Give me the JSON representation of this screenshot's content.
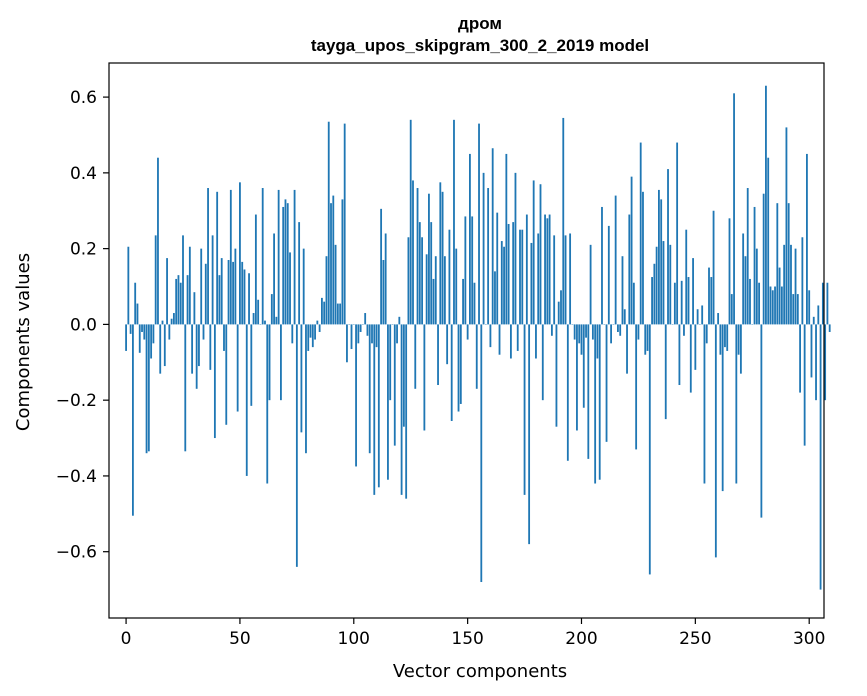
{
  "chart_data": {
    "type": "bar",
    "title": "дром",
    "subtitle": "tayga_upos_skipgram_300_2_2019 model",
    "xlabel": "Vector components",
    "ylabel": "Components values",
    "xlim": [
      -7.5,
      306.5
    ],
    "ylim": [
      -0.775,
      0.69
    ],
    "xticks": [
      0,
      50,
      100,
      150,
      200,
      250,
      300
    ],
    "xtick_labels": [
      "0",
      "50",
      "100",
      "150",
      "200",
      "250",
      "300"
    ],
    "yticks": [
      -0.6,
      -0.4,
      -0.2,
      0.0,
      0.2,
      0.4,
      0.6
    ],
    "ytick_labels": [
      "−0.6",
      "−0.4",
      "−0.2",
      "0.0",
      "0.2",
      "0.4",
      "0.6"
    ],
    "grid": false,
    "legend": "none",
    "bar_color": "#1f77b4",
    "values": [
      -0.07,
      0.205,
      -0.025,
      -0.505,
      0.11,
      0.055,
      -0.075,
      -0.02,
      -0.04,
      -0.34,
      -0.335,
      -0.09,
      -0.05,
      0.235,
      0.44,
      -0.13,
      0.01,
      -0.11,
      0.175,
      -0.04,
      0.015,
      0.03,
      0.12,
      0.13,
      0.11,
      0.235,
      -0.335,
      0.13,
      0.205,
      -0.13,
      0.085,
      -0.17,
      -0.11,
      0.2,
      -0.04,
      0.16,
      0.36,
      -0.12,
      0.235,
      -0.3,
      0.35,
      0.13,
      0.175,
      -0.07,
      -0.265,
      0.17,
      0.355,
      0.165,
      0.2,
      -0.23,
      0.375,
      0.165,
      0.145,
      -0.4,
      0.135,
      -0.215,
      0.03,
      0.29,
      0.065,
      0.0,
      0.36,
      0.01,
      -0.42,
      -0.2,
      0.08,
      0.24,
      0.02,
      0.355,
      -0.2,
      0.31,
      0.33,
      0.32,
      0.19,
      -0.05,
      0.355,
      -0.64,
      0.27,
      -0.285,
      0.2,
      -0.34,
      -0.07,
      -0.035,
      -0.06,
      -0.04,
      0.01,
      -0.02,
      0.07,
      0.06,
      0.18,
      0.535,
      0.32,
      0.34,
      0.21,
      0.055,
      0.055,
      0.33,
      0.53,
      -0.1,
      0.0,
      -0.065,
      0.0,
      -0.375,
      -0.05,
      -0.02,
      0.0,
      0.03,
      -0.03,
      -0.34,
      -0.05,
      -0.45,
      -0.06,
      -0.43,
      0.305,
      0.17,
      0.24,
      -0.41,
      -0.2,
      0.0,
      -0.32,
      -0.05,
      0.02,
      -0.45,
      -0.27,
      -0.46,
      0.23,
      0.54,
      0.38,
      -0.17,
      0.36,
      0.27,
      0.23,
      -0.28,
      0.185,
      0.345,
      0.27,
      0.12,
      0.18,
      -0.16,
      0.375,
      0.35,
      0.18,
      -0.105,
      0.25,
      -0.255,
      0.54,
      0.2,
      -0.23,
      -0.21,
      0.12,
      0.285,
      -0.04,
      0.45,
      0.285,
      0.11,
      -0.17,
      0.53,
      -0.68,
      0.4,
      0.0,
      0.36,
      -0.06,
      0.465,
      0.14,
      0.295,
      -0.08,
      0.22,
      0.205,
      0.45,
      0.265,
      -0.09,
      0.27,
      0.4,
      -0.07,
      0.25,
      0.25,
      -0.45,
      0.29,
      -0.58,
      0.215,
      0.38,
      -0.09,
      0.24,
      0.37,
      -0.2,
      0.29,
      0.28,
      0.29,
      -0.03,
      0.235,
      -0.27,
      0.06,
      0.09,
      0.545,
      0.235,
      -0.36,
      0.24,
      0.0,
      -0.04,
      -0.28,
      -0.05,
      -0.08,
      -0.22,
      -0.035,
      -0.355,
      0.21,
      -0.04,
      -0.42,
      -0.09,
      -0.41,
      0.31,
      0.0,
      -0.31,
      0.26,
      -0.05,
      0.0,
      0.34,
      -0.02,
      -0.03,
      0.18,
      0.04,
      -0.13,
      0.29,
      0.39,
      0.11,
      -0.33,
      -0.04,
      0.48,
      0.35,
      -0.08,
      -0.07,
      -0.66,
      0.125,
      0.16,
      0.205,
      0.355,
      0.33,
      0.22,
      -0.25,
      0.41,
      0.21,
      0.0,
      0.11,
      0.48,
      -0.16,
      0.115,
      -0.03,
      0.25,
      0.125,
      -0.18,
      0.175,
      -0.12,
      0.04,
      0.0,
      0.05,
      -0.42,
      -0.05,
      0.15,
      0.125,
      0.3,
      -0.615,
      0.03,
      -0.08,
      -0.44,
      -0.06,
      -0.07,
      0.28,
      0.08,
      0.61,
      -0.42,
      -0.08,
      -0.13,
      0.24,
      0.18,
      0.36,
      0.12,
      0.0,
      0.31,
      0.2,
      0.11,
      -0.51,
      0.345,
      0.63,
      0.44,
      0.1,
      0.09,
      0.1,
      0.32,
      0.15,
      0.1,
      0.21,
      0.52,
      0.32,
      0.21,
      0.08,
      0.2,
      0.08,
      -0.18,
      0.23,
      -0.32,
      0.45,
      0.09,
      -0.14,
      0.02,
      -0.2,
      0.05,
      -0.7,
      0.11,
      -0.2,
      0.11,
      -0.02
    ]
  }
}
